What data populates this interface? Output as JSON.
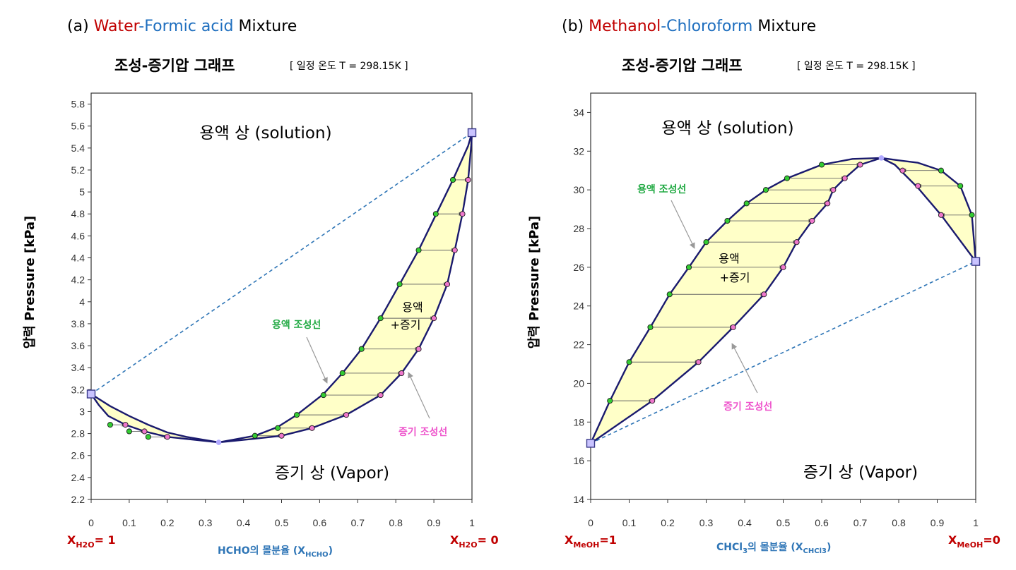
{
  "colors": {
    "red": "#c00000",
    "blue": "#1f6fbf",
    "liquid_label": "#22aa44",
    "vapor_label": "#ee55cc",
    "fill": "#ffffc8",
    "curve": "#1a1a6e",
    "liquid_point": "#33cc33",
    "vapor_point": "#ee77cc",
    "azeotrope": "#b0a8ff",
    "dashed": "#2e75b6",
    "xlabel": "#2e75b6"
  },
  "panels": [
    {
      "heading": {
        "prefix": "(a) ",
        "comp1": "Water",
        "dash": "-",
        "comp2": "Formic acid",
        "suffix": " Mixture"
      },
      "subtitle": "조성-증기압 그래프",
      "condition": "[ 일정 온도 T = 298.15K ]",
      "ylabel": "압력 Pressure [kPa]",
      "solution_label": "용액 상 (solution)",
      "vapor_label": "증기 상 (Vapor)",
      "coexist_line1": "용액",
      "coexist_line2": "+증기",
      "liquid_curve_label": "용액 조성선",
      "vapor_curve_label": "증기 조성선",
      "left_end": {
        "base": "X",
        "sub": "H2O",
        "tail": "= 1"
      },
      "right_end": {
        "base": "X",
        "sub": "H2O",
        "tail": "= 0"
      },
      "xlabel": {
        "base": "HCHO의 몰분율 (X",
        "sub": "HCHO",
        "tail": ")"
      },
      "x_ticks": [
        "0",
        "0.1",
        "0.2",
        "0.3",
        "0.4",
        "0.5",
        "0.6",
        "0.7",
        "0.8",
        "0.9",
        "1"
      ],
      "y_ticks": [
        "2.2",
        "2.4",
        "2.6",
        "2.8",
        "3",
        "3.2",
        "3.4",
        "3.6",
        "3.8",
        "4",
        "4.2",
        "4.4",
        "4.6",
        "4.8",
        "5",
        "5.2",
        "5.4",
        "5.6",
        "5.8"
      ]
    },
    {
      "heading": {
        "prefix": "(b) ",
        "comp1": "Methanol",
        "dash": "-",
        "comp2": "Chloroform",
        "suffix": " Mixture"
      },
      "subtitle": "조성-증기압 그래프",
      "condition": "[ 일정 온도 T = 298.15K ]",
      "ylabel": "압력 Pressure [kPa]",
      "solution_label": "용액 상 (solution)",
      "vapor_label": "증기 상 (Vapor)",
      "coexist_line1": "용액",
      "coexist_line2": "+증기",
      "liquid_curve_label": "용액 조성선",
      "vapor_curve_label": "증기 조성선",
      "left_end": {
        "base": "X",
        "sub": "MeOH",
        "tail": "=1"
      },
      "right_end": {
        "base": "X",
        "sub": "MeOH",
        "tail": "=0"
      },
      "xlabel": {
        "base": "CHCl",
        "sub3": "3",
        "mid": "의 몰분율 (X",
        "sub": "CHCl3",
        "tail": ")"
      },
      "x_ticks": [
        "0",
        "0.1",
        "0.2",
        "0.3",
        "0.4",
        "0.5",
        "0.6",
        "0.7",
        "0.8",
        "0.9",
        "1"
      ],
      "y_ticks": [
        "14",
        "16",
        "18",
        "20",
        "22",
        "24",
        "26",
        "28",
        "30",
        "32",
        "34"
      ]
    }
  ],
  "chart_data": [
    {
      "type": "line",
      "title": "(a) Water-Formic acid Mixture — 조성-증기압 그래프",
      "xlabel": "HCHO의 몰분율 (X_HCHO)",
      "ylabel": "압력 Pressure [kPa]",
      "xlim": [
        0,
        1
      ],
      "ylim": [
        2.2,
        5.9
      ],
      "temperature": "298.15K",
      "pure_pressures": {
        "x0": 3.16,
        "x1": 5.54
      },
      "azeotrope": {
        "x": 0.335,
        "p": 2.72
      },
      "series": [
        {
          "name": "용액 조성선",
          "points": [
            [
              0,
              3.16
            ],
            [
              0.05,
              3.05
            ],
            [
              0.1,
              2.96
            ],
            [
              0.15,
              2.88
            ],
            [
              0.2,
              2.81
            ],
            [
              0.25,
              2.77
            ],
            [
              0.335,
              2.72
            ],
            [
              0.43,
              2.78
            ],
            [
              0.49,
              2.86
            ],
            [
              0.54,
              2.97
            ],
            [
              0.61,
              3.16
            ],
            [
              0.66,
              3.35
            ],
            [
              0.71,
              3.57
            ],
            [
              0.76,
              3.85
            ],
            [
              0.81,
              4.16
            ],
            [
              0.86,
              4.47
            ],
            [
              0.905,
              4.79
            ],
            [
              0.95,
              5.11
            ],
            [
              0.99,
              5.42
            ],
            [
              1,
              5.54
            ]
          ]
        },
        {
          "name": "증기 조성선",
          "points": [
            [
              0,
              3.16
            ],
            [
              0.02,
              3.06
            ],
            [
              0.045,
              2.96
            ],
            [
              0.09,
              2.88
            ],
            [
              0.14,
              2.82
            ],
            [
              0.2,
              2.77
            ],
            [
              0.335,
              2.72
            ],
            [
              0.42,
              2.75
            ],
            [
              0.5,
              2.78
            ],
            [
              0.58,
              2.85
            ],
            [
              0.67,
              2.97
            ],
            [
              0.76,
              3.15
            ],
            [
              0.815,
              3.35
            ],
            [
              0.86,
              3.57
            ],
            [
              0.9,
              3.85
            ],
            [
              0.935,
              4.16
            ],
            [
              0.955,
              4.47
            ],
            [
              0.975,
              4.8
            ],
            [
              0.99,
              5.11
            ],
            [
              0.998,
              5.42
            ],
            [
              1,
              5.54
            ]
          ]
        }
      ],
      "tie_lines": [
        [
          0.05,
          0.09,
          2.88
        ],
        [
          0.1,
          0.14,
          2.82
        ],
        [
          0.15,
          0.2,
          2.77
        ],
        [
          0.43,
          0.5,
          2.78
        ],
        [
          0.49,
          0.58,
          2.85
        ],
        [
          0.54,
          0.67,
          2.97
        ],
        [
          0.61,
          0.76,
          3.15
        ],
        [
          0.66,
          0.815,
          3.35
        ],
        [
          0.71,
          0.86,
          3.57
        ],
        [
          0.76,
          0.9,
          3.85
        ],
        [
          0.81,
          0.935,
          4.16
        ],
        [
          0.86,
          0.955,
          4.47
        ],
        [
          0.905,
          0.975,
          4.8
        ],
        [
          0.95,
          0.99,
          5.11
        ]
      ],
      "ideal_line": [
        [
          0,
          3.16
        ],
        [
          1,
          5.54
        ]
      ]
    },
    {
      "type": "line",
      "title": "(b) Methanol-Chloroform Mixture — 조성-증기압 그래프",
      "xlabel": "CHCl3의 몰분율 (X_CHCl3)",
      "ylabel": "압력 Pressure [kPa]",
      "xlim": [
        0,
        1
      ],
      "ylim": [
        14,
        35
      ],
      "temperature": "298.15K",
      "pure_pressures": {
        "x0": 16.9,
        "x1": 26.3
      },
      "azeotrope": {
        "x": 0.755,
        "p": 31.65
      },
      "series": [
        {
          "name": "용액 조성선",
          "points": [
            [
              0,
              16.9
            ],
            [
              0.05,
              19.1
            ],
            [
              0.1,
              21.1
            ],
            [
              0.155,
              22.9
            ],
            [
              0.205,
              24.6
            ],
            [
              0.255,
              26.0
            ],
            [
              0.3,
              27.3
            ],
            [
              0.355,
              28.4
            ],
            [
              0.405,
              29.3
            ],
            [
              0.455,
              30.0
            ],
            [
              0.51,
              30.6
            ],
            [
              0.6,
              31.3
            ],
            [
              0.68,
              31.6
            ],
            [
              0.755,
              31.65
            ],
            [
              0.79,
              31.55
            ],
            [
              0.85,
              31.4
            ],
            [
              0.91,
              31.0
            ],
            [
              0.96,
              30.2
            ],
            [
              0.99,
              28.7
            ],
            [
              1,
              26.3
            ]
          ]
        },
        {
          "name": "증기 조성선",
          "points": [
            [
              0,
              16.9
            ],
            [
              0.16,
              19.1
            ],
            [
              0.28,
              21.1
            ],
            [
              0.37,
              22.9
            ],
            [
              0.45,
              24.6
            ],
            [
              0.5,
              26.0
            ],
            [
              0.535,
              27.3
            ],
            [
              0.575,
              28.4
            ],
            [
              0.615,
              29.3
            ],
            [
              0.63,
              30.0
            ],
            [
              0.66,
              30.6
            ],
            [
              0.7,
              31.3
            ],
            [
              0.755,
              31.65
            ],
            [
              0.79,
              31.3
            ],
            [
              0.81,
              30.9
            ],
            [
              0.85,
              30.1
            ],
            [
              0.91,
              28.7
            ],
            [
              1,
              26.3
            ]
          ]
        }
      ],
      "tie_lines": [
        [
          0.05,
          0.16,
          19.1
        ],
        [
          0.1,
          0.28,
          21.1
        ],
        [
          0.155,
          0.37,
          22.9
        ],
        [
          0.205,
          0.45,
          24.6
        ],
        [
          0.255,
          0.5,
          26.0
        ],
        [
          0.3,
          0.535,
          27.3
        ],
        [
          0.355,
          0.575,
          28.4
        ],
        [
          0.405,
          0.615,
          29.3
        ],
        [
          0.455,
          0.63,
          30.0
        ],
        [
          0.51,
          0.66,
          30.6
        ],
        [
          0.6,
          0.7,
          31.3
        ],
        [
          0.91,
          0.81,
          31.0
        ],
        [
          0.96,
          0.85,
          30.2
        ],
        [
          0.99,
          0.91,
          28.7
        ]
      ],
      "ideal_line": [
        [
          0,
          16.9
        ],
        [
          1,
          26.3
        ]
      ]
    }
  ]
}
